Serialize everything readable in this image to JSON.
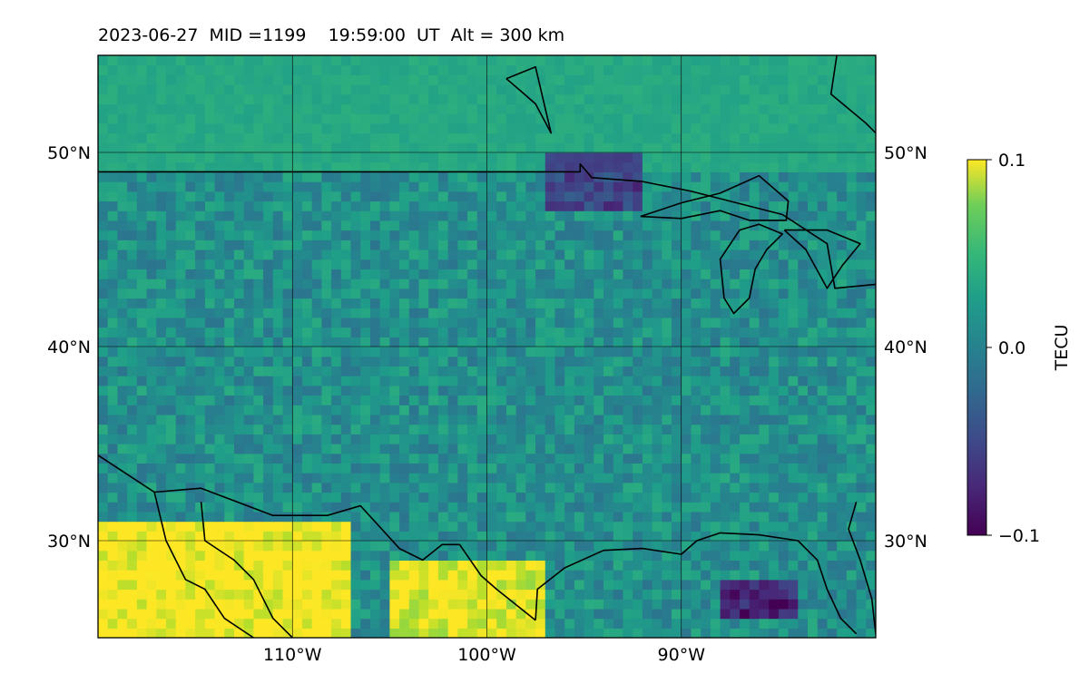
{
  "chart_data": {
    "type": "heatmap",
    "title": "2023-06-27  MID =1199    19:59:00  UT  Alt = 300 km",
    "projection": "equirectangular map",
    "xlim": [
      -120,
      -80
    ],
    "ylim": [
      25,
      55
    ],
    "x_ticks": [
      -110,
      -100,
      -90
    ],
    "x_tick_labels": [
      "110°W",
      "100°W",
      "90°W"
    ],
    "y_ticks": [
      30,
      40,
      50
    ],
    "y_tick_labels_left": [
      "30°N",
      "40°N",
      "50°N"
    ],
    "y_tick_labels_right": [
      "30°N",
      "40°N",
      "50°N"
    ],
    "grid": true,
    "colorbar": {
      "label": "TECU",
      "colormap": "viridis",
      "range": [
        -0.1,
        0.1
      ],
      "ticks": [
        0.1,
        0.0,
        -0.1
      ],
      "tick_labels": [
        "0.1",
        "0.0",
        "−0.1"
      ],
      "placement": "right"
    },
    "field": {
      "grid_resolution_deg": 0.5,
      "background_mean_TECU": 0.0,
      "regions": [
        {
          "name": "northern smooth high region",
          "lon": [
            -120,
            -80
          ],
          "lat": [
            49,
            55
          ],
          "approx_TECU": 0.02
        },
        {
          "name": "southwest enhancement",
          "lon": [
            -120,
            -107
          ],
          "lat": [
            25,
            31
          ],
          "approx_TECU": 0.1
        },
        {
          "name": "south-central enhancement",
          "lon": [
            -105,
            -97
          ],
          "lat": [
            25,
            29
          ],
          "approx_TECU": 0.09
        },
        {
          "name": "gulf depletion",
          "lon": [
            -88,
            -84
          ],
          "lat": [
            26,
            28
          ],
          "approx_TECU": -0.08
        },
        {
          "name": "Great Lakes depletion",
          "lon": [
            -97,
            -92
          ],
          "lat": [
            47,
            50
          ],
          "approx_TECU": -0.06
        }
      ]
    },
    "boundaries": [
      {
        "name": "US-Canada border",
        "points": [
          [
            -120,
            49
          ],
          [
            -95.2,
            49
          ],
          [
            -95.2,
            49.4
          ],
          [
            -94.6,
            48.7
          ],
          [
            -92,
            48.5
          ],
          [
            -89.5,
            48
          ],
          [
            -84.8,
            46.8
          ],
          [
            -82.5,
            45.3
          ],
          [
            -82.1,
            43
          ],
          [
            -79,
            43.3
          ],
          [
            -80,
            42.2
          ]
        ]
      },
      {
        "name": "Lake Superior",
        "points": [
          [
            -92.1,
            46.7
          ],
          [
            -90,
            47.4
          ],
          [
            -88,
            47.9
          ],
          [
            -86,
            48.8
          ],
          [
            -84.5,
            47.5
          ],
          [
            -84.6,
            46.5
          ],
          [
            -86.5,
            46.5
          ],
          [
            -88,
            47
          ],
          [
            -90,
            46.6
          ],
          [
            -92.1,
            46.7
          ]
        ]
      },
      {
        "name": "Lake Michigan",
        "points": [
          [
            -87,
            46
          ],
          [
            -88,
            44.5
          ],
          [
            -87.8,
            42.5
          ],
          [
            -87.3,
            41.7
          ],
          [
            -86.5,
            42.5
          ],
          [
            -86.2,
            44
          ],
          [
            -85.6,
            45
          ],
          [
            -84.8,
            45.8
          ],
          [
            -86,
            46.3
          ],
          [
            -87,
            46
          ]
        ]
      },
      {
        "name": "Lake Huron",
        "points": [
          [
            -84.7,
            46
          ],
          [
            -83.6,
            45
          ],
          [
            -82.5,
            43
          ],
          [
            -81.7,
            44.2
          ],
          [
            -80.8,
            45.3
          ],
          [
            -82.5,
            46
          ],
          [
            -84.7,
            46
          ]
        ]
      },
      {
        "name": "Lake Winnipeg",
        "points": [
          [
            -99,
            53.8
          ],
          [
            -97.5,
            54.4
          ],
          [
            -96.7,
            51
          ],
          [
            -97.5,
            52.5
          ],
          [
            -98.3,
            53.2
          ],
          [
            -99,
            53.8
          ]
        ]
      },
      {
        "name": "Hudson Bay coast",
        "points": [
          [
            -82,
            55
          ],
          [
            -82.3,
            53
          ],
          [
            -80.5,
            51.5
          ],
          [
            -80,
            51
          ]
        ]
      },
      {
        "name": "US-Mexico border",
        "points": [
          [
            -120,
            34.4
          ],
          [
            -117.1,
            32.5
          ],
          [
            -114.7,
            32.7
          ],
          [
            -111,
            31.3
          ],
          [
            -108.2,
            31.3
          ],
          [
            -106.5,
            31.8
          ],
          [
            -104.5,
            29.6
          ],
          [
            -103.3,
            29
          ],
          [
            -102.3,
            29.8
          ],
          [
            -101.4,
            29.8
          ],
          [
            -100.3,
            28.2
          ],
          [
            -99.5,
            27.5
          ],
          [
            -97.5,
            25.9
          ]
        ]
      },
      {
        "name": "Baja California coast",
        "points": [
          [
            -117.1,
            32.5
          ],
          [
            -116.5,
            30
          ],
          [
            -115.5,
            28
          ],
          [
            -114.5,
            27.5
          ],
          [
            -113.5,
            26
          ],
          [
            -112,
            25
          ]
        ]
      },
      {
        "name": "Gulf of California coast",
        "points": [
          [
            -114.7,
            32
          ],
          [
            -114.5,
            30
          ],
          [
            -113,
            29
          ],
          [
            -112,
            28
          ],
          [
            -111,
            26
          ],
          [
            -110,
            25
          ]
        ]
      },
      {
        "name": "Gulf coast",
        "points": [
          [
            -97.5,
            25.9
          ],
          [
            -97.4,
            27.5
          ],
          [
            -96,
            28.6
          ],
          [
            -94,
            29.5
          ],
          [
            -92,
            29.6
          ],
          [
            -90,
            29.3
          ],
          [
            -89.2,
            30
          ],
          [
            -88,
            30.4
          ],
          [
            -86,
            30.3
          ],
          [
            -84,
            30
          ],
          [
            -83,
            29
          ],
          [
            -82.5,
            27.5
          ],
          [
            -81.8,
            26
          ],
          [
            -81,
            25.2
          ]
        ]
      },
      {
        "name": "Florida Atlantic coast",
        "points": [
          [
            -80,
            25.2
          ],
          [
            -80.2,
            27
          ],
          [
            -80.8,
            29
          ],
          [
            -81.4,
            30.6
          ],
          [
            -81,
            32
          ]
        ]
      }
    ]
  }
}
